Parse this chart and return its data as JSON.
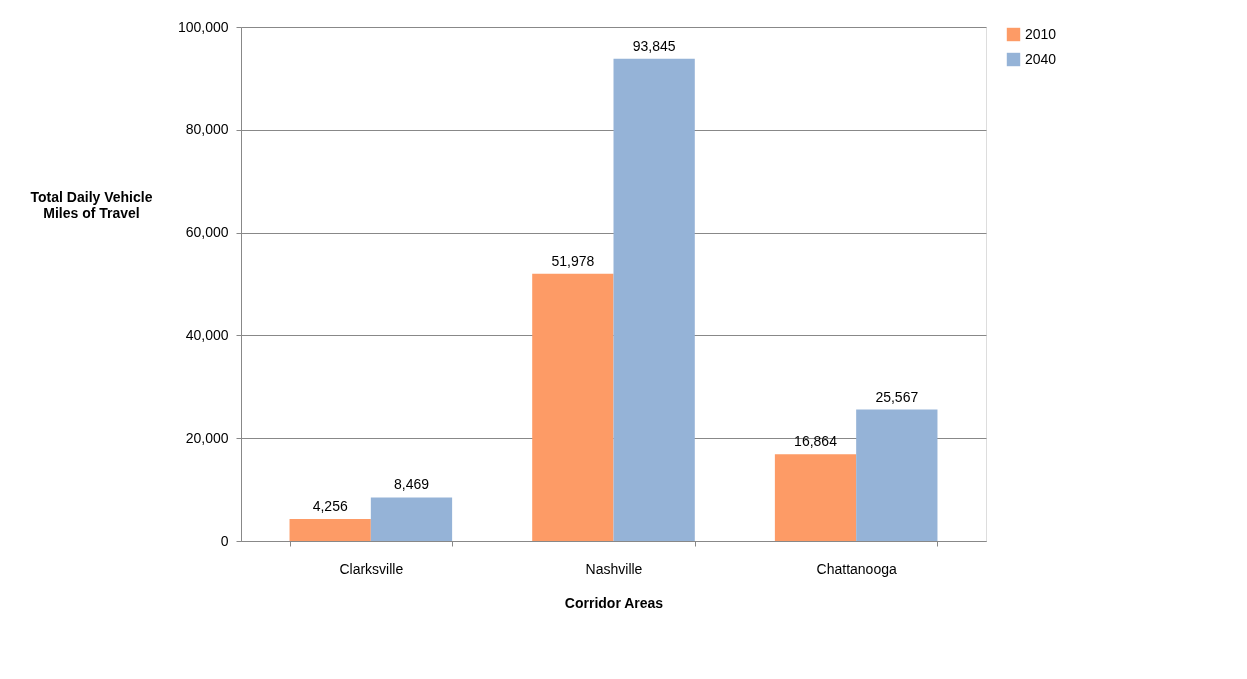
{
  "chart_data": {
    "type": "bar",
    "xlabel": "Corridor Areas",
    "ylabel": "Total Daily Vehicle Miles of Travel",
    "categories": [
      "Clarksville",
      "Nashville",
      "Chattanooga"
    ],
    "series": [
      {
        "name": "2010",
        "color": "#fd9b66",
        "values": [
          4256,
          51978,
          16864
        ],
        "value_labels": [
          "4,256",
          "51,978",
          "16,864"
        ]
      },
      {
        "name": "2040",
        "color": "#95b3d7",
        "values": [
          8469,
          93845,
          25567
        ],
        "value_labels": [
          "8,469",
          "93,845",
          "25,567"
        ]
      }
    ],
    "ylim": [
      0,
      100000
    ],
    "yticks": [
      0,
      {
        "value": 20000,
        "label": "20,000"
      },
      {
        "value": 40000,
        "label": "40,000"
      },
      {
        "value": 60000,
        "label": "60,000"
      },
      {
        "value": 80000,
        "label": "80,000"
      },
      {
        "value": 100000,
        "label": "100,000"
      }
    ],
    "grid": "y",
    "legend": "right"
  }
}
